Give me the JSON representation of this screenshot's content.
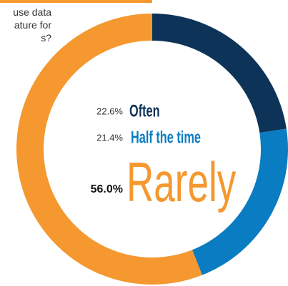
{
  "chart_data": {
    "type": "donut",
    "question_lines": [
      "use data",
      "ature for",
      "s?"
    ],
    "categories": [
      "Often",
      "Half the time",
      "Rarely"
    ],
    "values": [
      22.6,
      21.4,
      56.0
    ],
    "value_labels": [
      "22.6%",
      "21.4%",
      "56.0%"
    ],
    "colors": [
      "#0d3458",
      "#0a7cc1",
      "#f5982f"
    ]
  }
}
